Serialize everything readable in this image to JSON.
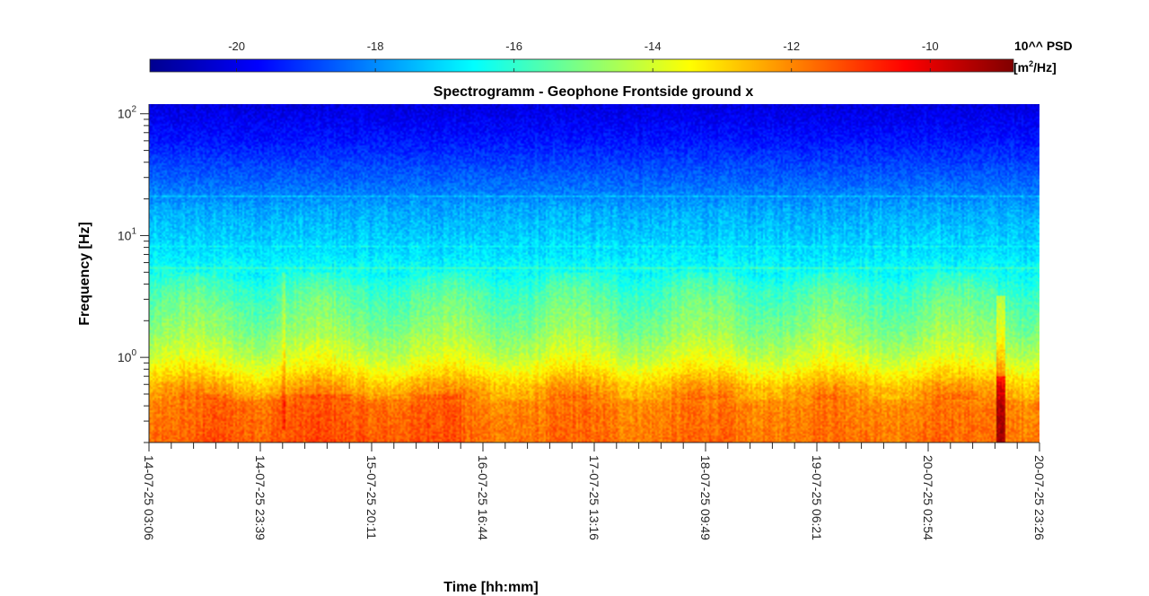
{
  "chart_data": {
    "type": "heatmap",
    "title": "Spectrogramm - Geophone Frontside ground x",
    "xlabel": "Time [hh:mm]",
    "ylabel": "Frequency [Hz]",
    "yscale": "log",
    "ylim": [
      0.2,
      120
    ],
    "y_ticks": [
      {
        "value": 1,
        "base": "10",
        "exp": "0"
      },
      {
        "value": 10,
        "base": "10",
        "exp": "1"
      },
      {
        "value": 100,
        "base": "10",
        "exp": "2"
      }
    ],
    "x_ticks": [
      "14-07-25 03:06",
      "14-07-25 23:39",
      "15-07-25 20:11",
      "16-07-25 16:44",
      "17-07-25 13:16",
      "18-07-25 09:49",
      "19-07-25 06:21",
      "20-07-25 02:54",
      "20-07-25 23:26"
    ],
    "minor_ticks_per_major": 4,
    "colorbar": {
      "label": "10^^ PSD",
      "unit_prefix": "[m",
      "unit_sup": "2",
      "unit_suffix": "/Hz]",
      "ticks": [
        -20,
        -18,
        -16,
        -14,
        -12,
        -10
      ],
      "range": [
        -21.25,
        -8.8
      ],
      "colormap": "jet"
    },
    "psd_profile": {
      "description_units": "log10 PSD vs log10 frequency (approximate, mid-record levels)",
      "log10_freq": [
        -0.7,
        -0.4,
        -0.25,
        -0.1,
        0.0,
        0.2,
        0.4,
        0.55,
        0.7,
        0.85,
        1.0,
        1.2,
        1.4,
        1.6,
        1.8,
        2.08
      ],
      "log10_psd": [
        -11.7,
        -11.9,
        -12.4,
        -13.4,
        -14.0,
        -14.8,
        -15.3,
        -15.7,
        -16.4,
        -16.9,
        -17.2,
        -17.6,
        -18.3,
        -18.9,
        -19.5,
        -20.1
      ]
    },
    "events": [
      {
        "time_fraction": 0.955,
        "description": "broadband transient"
      },
      {
        "time_fraction": 0.15,
        "description": "narrow transient"
      }
    ]
  }
}
